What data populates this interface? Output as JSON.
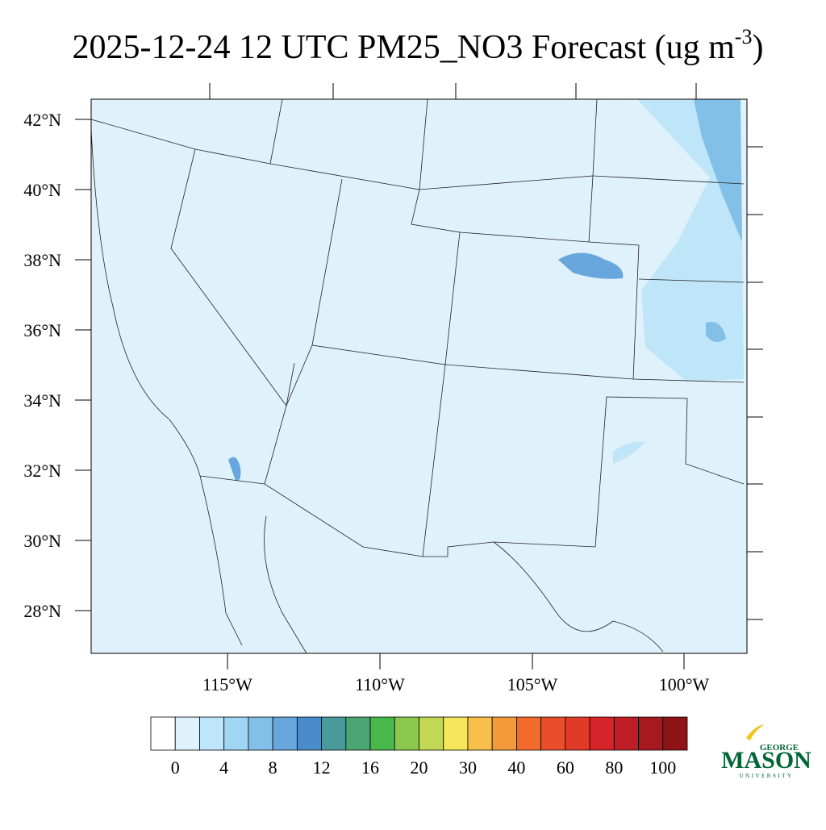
{
  "title": {
    "main": "2025-12-24 12 UTC PM25_NO3 Forecast (ug m",
    "superscript": "-3",
    "close": ")"
  },
  "map": {
    "lat_labels": [
      "42°N",
      "40°N",
      "38°N",
      "36°N",
      "34°N",
      "32°N",
      "30°N",
      "28°N"
    ],
    "lon_labels": [
      "115°W",
      "110°W",
      "105°W",
      "100°W"
    ],
    "background_color": "#dff1fb"
  },
  "colorbar": {
    "colors": [
      "#ffffff",
      "#dff1fb",
      "#bfe5f8",
      "#9fd6f3",
      "#82c0e8",
      "#67a7dd",
      "#4a8bcc",
      "#4a9a9c",
      "#4aa673",
      "#48b84a",
      "#8cc84e",
      "#c2d855",
      "#f5e65b",
      "#f6c04a",
      "#f59a3a",
      "#f26b2a",
      "#e84e2a",
      "#e03b28",
      "#d6242a",
      "#c01e26",
      "#a8191f",
      "#8e1418"
    ],
    "labels": [
      "0",
      "4",
      "8",
      "12",
      "16",
      "20",
      "30",
      "40",
      "60",
      "80",
      "100"
    ]
  },
  "logo": {
    "top": "GEORGE",
    "middle": "MASON",
    "bottom": "UNIVERSITY"
  }
}
